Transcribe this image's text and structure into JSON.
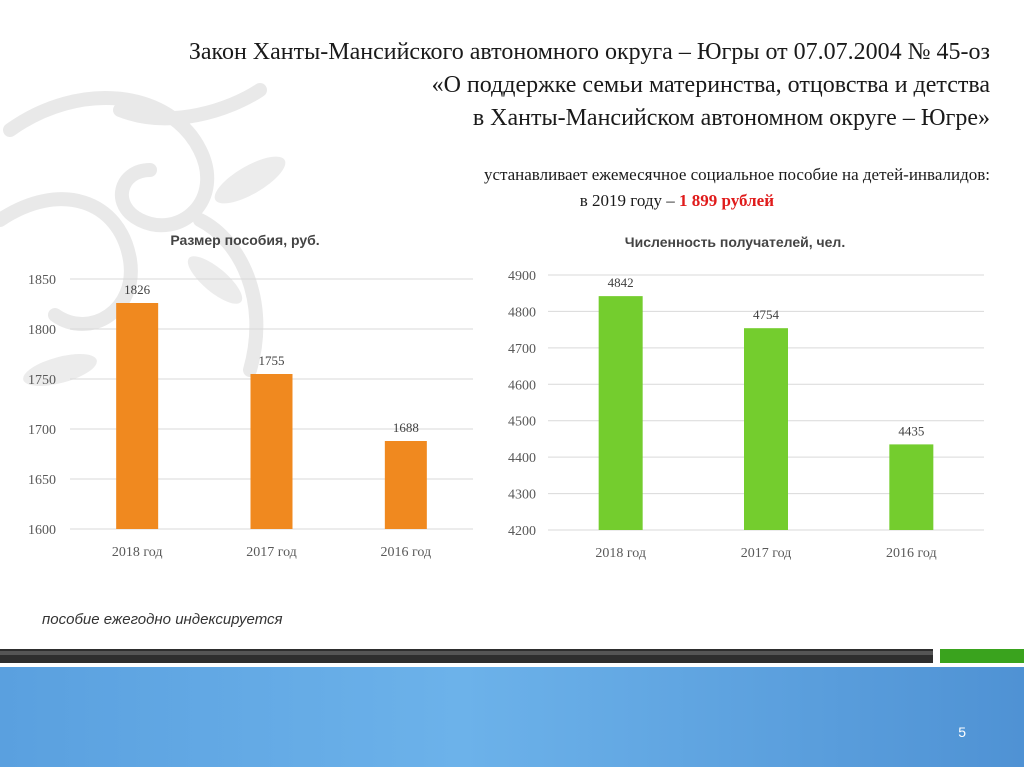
{
  "slide": {
    "title_lines": [
      "Закон Ханты-Мансийского автономного округа – Югры от 07.07.2004 № 45-оз",
      "«О поддержке семьи материнства, отцовства и детства",
      "в Ханты-Мансийском автономном округе – Югре»"
    ],
    "subtitle_line1": "устанавливает  ежемесячное социальное пособие на детей-инвалидов:",
    "subtitle_line2_prefix": "в 2019 году – ",
    "subtitle_line2_highlight": "1 899 рублей",
    "note": "пособие ежегодно индексируется",
    "page_number": "5",
    "colors": {
      "orange_bar": "#f0891f",
      "green_bar": "#74cd2e",
      "highlight": "#e01b1b",
      "footer": "#5aa0df",
      "green_strip": "#3aa31e"
    }
  },
  "chart_data": [
    {
      "type": "bar",
      "title": "Размер пособия, руб.",
      "categories": [
        "2018 год",
        "2017 год",
        "2016 год"
      ],
      "values": [
        1826,
        1755,
        1688
      ],
      "ylim": [
        1600,
        1850
      ],
      "yticks": [
        1600,
        1650,
        1700,
        1750,
        1800,
        1850
      ],
      "color": "#f0891f",
      "grid": true
    },
    {
      "type": "bar",
      "title": "Численность получателей, чел.",
      "categories": [
        "2018 год",
        "2017 год",
        "2016 год"
      ],
      "values": [
        4842,
        4754,
        4435
      ],
      "ylim": [
        4200,
        4900
      ],
      "yticks": [
        4200,
        4300,
        4400,
        4500,
        4600,
        4700,
        4800,
        4900
      ],
      "color": "#74cd2e",
      "grid": true
    }
  ]
}
